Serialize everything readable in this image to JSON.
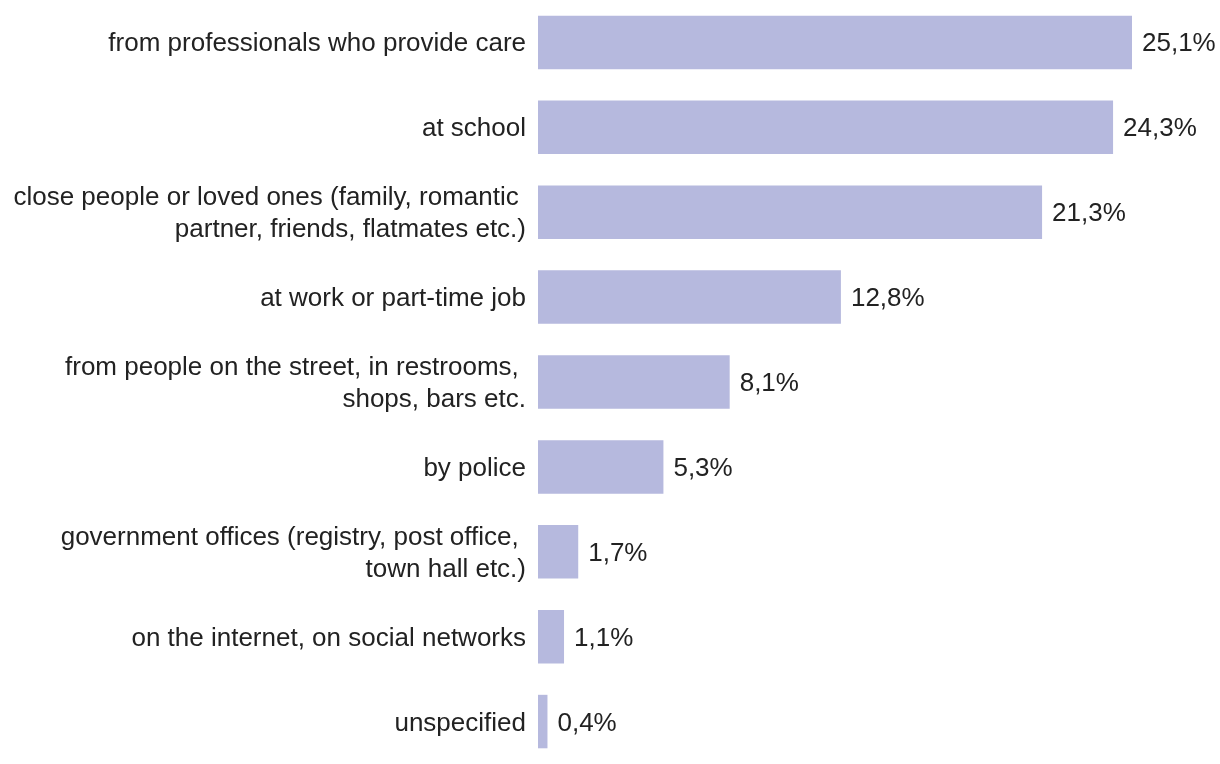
{
  "chart_data": {
    "type": "bar",
    "orientation": "horizontal",
    "categories": [
      "from professionals who provide care",
      "at school",
      "close people or loved ones (family, romantic partner, friends, flatmates etc.)",
      "at work or part-time job",
      "from people on the street, in restrooms, shops, bars etc.",
      "by police",
      "government offices (registry, post office, town hall etc.)",
      "on the internet, on social networks",
      "unspecified"
    ],
    "values": [
      25.1,
      24.3,
      21.3,
      12.8,
      8.1,
      5.3,
      1.7,
      1.1,
      0.4
    ],
    "value_labels": [
      "25,1%",
      "24,3%",
      "21,3%",
      "12,8%",
      "8,1%",
      "5,3%",
      "1,7%",
      "1,1%",
      "0,4%"
    ],
    "color": "#b6b9de"
  }
}
